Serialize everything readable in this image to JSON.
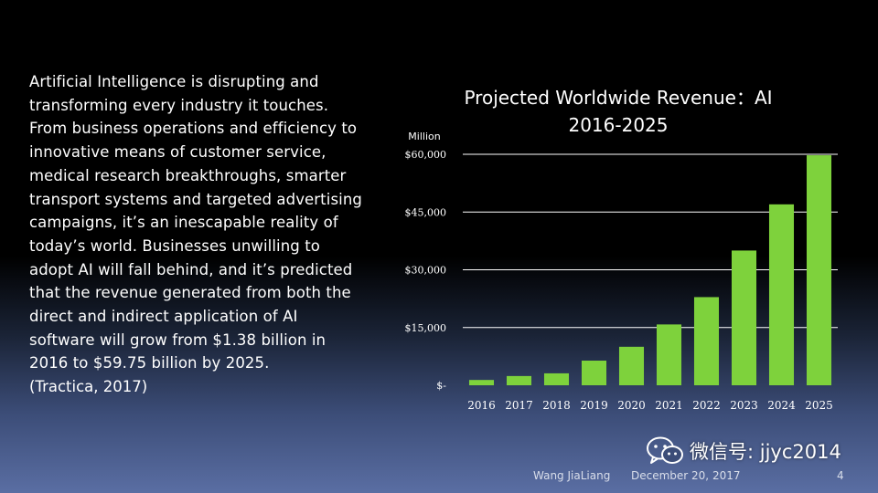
{
  "slide": {
    "body_text": "Artificial Intelligence is disrupting and\ntransforming every industry it touches.\nFrom business operations and efficiency to\ninnovative means of customer service,\nmedical research breakthroughs, smarter\ntransport systems and targeted advertising\ncampaigns, it’s an inescapable reality of\ntoday’s world. Businesses unwilling to\nadopt AI will fall behind, and it’s predicted\nthat the revenue generated from both the\ndirect and indirect application of AI\nsoftware will grow from $1.38 billion in\n2016 to $59.75 billion by 2025.",
    "citation": "(Tractica, 2017)",
    "footer": {
      "author": "Wang JiaLiang",
      "date": "December 20, 2017",
      "page": "4"
    },
    "watermark": "微信号: jjyc2014",
    "colors": {
      "bar": "#7ed23c",
      "gridline": "#ffffff",
      "background_top": "#000000",
      "background_bottom": "#5a6ea3"
    }
  },
  "chart_data": {
    "type": "bar",
    "title": "Projected Worldwide Revenue：AI\n2016-2025",
    "ylabel": "Million",
    "xlabel": "",
    "categories": [
      "2016",
      "2017",
      "2018",
      "2019",
      "2020",
      "2021",
      "2022",
      "2023",
      "2024",
      "2025"
    ],
    "values": [
      1380,
      2400,
      3100,
      6400,
      10000,
      15800,
      22900,
      35000,
      47000,
      59750
    ],
    "ylim": [
      0,
      60000
    ],
    "yticks": [
      0,
      15000,
      30000,
      45000,
      60000
    ],
    "ytick_labels": [
      "$-",
      "$15,000",
      "$30,000",
      "$45,000",
      "$60,000"
    ],
    "grid": true,
    "legend": "none"
  }
}
